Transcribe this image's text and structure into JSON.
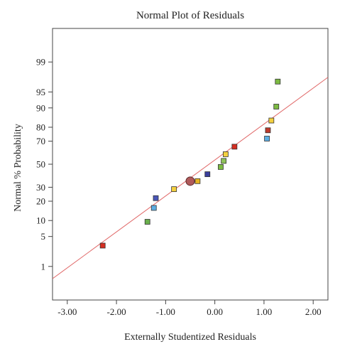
{
  "chart_data": {
    "type": "scatter",
    "title": "Normal Plot of Residuals",
    "xlabel": "Externally Studentized Residuals",
    "ylabel": "Normal % Probability",
    "xlim": [
      -3.3,
      2.3
    ],
    "y_scale": "normal probability",
    "ylim": [
      0.1,
      99.9
    ],
    "x_ticks": [
      -3.0,
      -2.0,
      -1.0,
      0.0,
      1.0,
      2.0
    ],
    "x_tick_labels": [
      "-3.00",
      "-2.00",
      "-1.00",
      "0.00",
      "1.00",
      "2.00"
    ],
    "y_ticks": [
      1,
      5,
      10,
      20,
      30,
      50,
      70,
      80,
      90,
      95,
      99
    ],
    "y_tick_labels": [
      "1",
      "5",
      "10",
      "20",
      "30",
      "50",
      "70",
      "80",
      "90",
      "95",
      "99"
    ],
    "grid": false,
    "reference_line": {
      "color": "#e06666",
      "points": [
        [
          -3.3,
          0.46
        ],
        [
          2.3,
          97.6
        ]
      ]
    },
    "points": [
      {
        "x": -2.28,
        "y": 3.2,
        "color": "#d62d20",
        "marker": "square"
      },
      {
        "x": -1.37,
        "y": 9.5,
        "color": "#6ab04c",
        "marker": "square"
      },
      {
        "x": -1.24,
        "y": 16.0,
        "color": "#5dade2",
        "marker": "square"
      },
      {
        "x": -1.2,
        "y": 22.0,
        "color": "#4a56b8",
        "marker": "square"
      },
      {
        "x": -0.83,
        "y": 28.5,
        "color": "#f4d03f",
        "marker": "square"
      },
      {
        "x": -0.5,
        "y": 35.0,
        "color": "#b05a5a",
        "marker": "circle"
      },
      {
        "x": -0.35,
        "y": 35.0,
        "color": "#e6b422",
        "marker": "square"
      },
      {
        "x": -0.15,
        "y": 41.0,
        "color": "#3b3f9c",
        "marker": "square"
      },
      {
        "x": 0.12,
        "y": 47.5,
        "color": "#7dbb42",
        "marker": "square"
      },
      {
        "x": 0.18,
        "y": 53.0,
        "color": "#8fc25a",
        "marker": "square"
      },
      {
        "x": 0.22,
        "y": 59.0,
        "color": "#f4d03f",
        "marker": "square"
      },
      {
        "x": 0.4,
        "y": 65.5,
        "color": "#d62d20",
        "marker": "square"
      },
      {
        "x": 1.06,
        "y": 72.0,
        "color": "#5dade2",
        "marker": "square"
      },
      {
        "x": 1.08,
        "y": 78.0,
        "color": "#c0392b",
        "marker": "square"
      },
      {
        "x": 1.15,
        "y": 84.0,
        "color": "#f4d03f",
        "marker": "square"
      },
      {
        "x": 1.25,
        "y": 90.5,
        "color": "#7dbb42",
        "marker": "square"
      },
      {
        "x": 1.28,
        "y": 97.0,
        "color": "#7dbb42",
        "marker": "square"
      }
    ]
  }
}
